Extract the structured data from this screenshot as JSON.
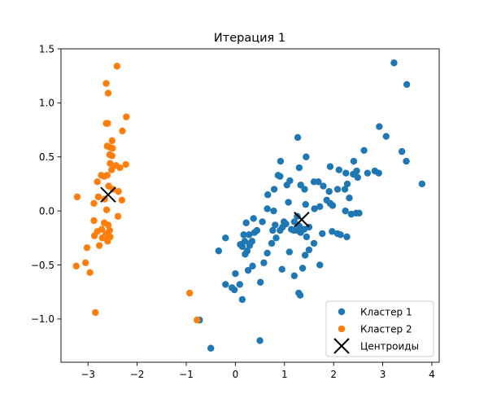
{
  "chart_data": {
    "type": "scatter",
    "title": "Итерация 1",
    "xlabel": "",
    "ylabel": "",
    "xlim": [
      -3.55,
      4.15
    ],
    "ylim": [
      -1.4,
      1.5
    ],
    "xticks": [
      -3,
      -2,
      -1,
      0,
      1,
      2,
      3,
      4
    ],
    "xtick_labels": [
      "−3",
      "−2",
      "−1",
      "0",
      "1",
      "2",
      "3",
      "4"
    ],
    "yticks": [
      -1.0,
      -0.5,
      0.0,
      0.5,
      1.0,
      1.5
    ],
    "ytick_labels": [
      "−1.0",
      "−0.5",
      "0.0",
      "0.5",
      "1.0",
      "1.5"
    ],
    "grid": false,
    "legend_position": "lower-right",
    "series": [
      {
        "name": "Кластер 1",
        "color": "#1f77b4",
        "marker": "circle",
        "points": [
          [
            3.23,
            1.37
          ],
          [
            3.49,
            1.17
          ],
          [
            2.93,
            0.78
          ],
          [
            3.07,
            0.69
          ],
          [
            2.62,
            0.56
          ],
          [
            3.39,
            0.55
          ],
          [
            3.48,
            0.46
          ],
          [
            3.8,
            0.25
          ],
          [
            2.41,
            0.46
          ],
          [
            2.47,
            0.37
          ],
          [
            2.84,
            0.37
          ],
          [
            2.92,
            0.35
          ],
          [
            2.69,
            0.35
          ],
          [
            2.4,
            0.34
          ],
          [
            2.25,
            0.35
          ],
          [
            2.49,
            0.31
          ],
          [
            1.93,
            0.41
          ],
          [
            2.11,
            0.38
          ],
          [
            1.69,
            0.27
          ],
          [
            1.79,
            0.23
          ],
          [
            1.6,
            0.27
          ],
          [
            1.27,
            0.68
          ],
          [
            1.44,
            0.5
          ],
          [
            1.3,
            0.4
          ],
          [
            0.92,
            0.46
          ],
          [
            0.87,
            0.33
          ],
          [
            0.91,
            0.32
          ],
          [
            1.11,
            0.28
          ],
          [
            1.05,
            0.24
          ],
          [
            0.79,
            0.2
          ],
          [
            0.66,
            0.15
          ],
          [
            1.33,
            0.24
          ],
          [
            2.28,
            0.25
          ],
          [
            2.23,
            0.2
          ],
          [
            2.08,
            0.2
          ],
          [
            2.32,
            0.12
          ],
          [
            1.91,
            0.18
          ],
          [
            1.86,
            0.1
          ],
          [
            1.98,
            0.05
          ],
          [
            1.72,
            0.04
          ],
          [
            1.61,
            0.02
          ],
          [
            1.93,
            0.07
          ],
          [
            1.41,
            0.2
          ],
          [
            1.43,
            0.06
          ],
          [
            1.08,
            0.08
          ],
          [
            0.65,
            0.02
          ],
          [
            0.78,
            0.0
          ],
          [
            0.55,
            -0.1
          ],
          [
            0.99,
            -0.1
          ],
          [
            0.81,
            -0.13
          ],
          [
            0.96,
            -0.15
          ],
          [
            1.03,
            -0.12
          ],
          [
            1.26,
            -0.05
          ],
          [
            1.2,
            -0.1
          ],
          [
            1.14,
            -0.17
          ],
          [
            0.91,
            -0.18
          ],
          [
            0.76,
            -0.18
          ],
          [
            0.39,
            -0.2
          ],
          [
            0.37,
            -0.07
          ],
          [
            0.22,
            -0.11
          ],
          [
            0.17,
            -0.22
          ],
          [
            0.29,
            -0.32
          ],
          [
            0.34,
            -0.28
          ],
          [
            0.44,
            -0.18
          ],
          [
            0.28,
            -0.22
          ],
          [
            0.19,
            -0.28
          ],
          [
            0.1,
            -0.31
          ],
          [
            0.24,
            -0.37
          ],
          [
            0.3,
            -0.3
          ],
          [
            0.2,
            -0.4
          ],
          [
            0.14,
            -0.33
          ],
          [
            -0.2,
            -0.25
          ],
          [
            -0.34,
            -0.37
          ],
          [
            0.0,
            -0.58
          ],
          [
            0.09,
            -0.68
          ],
          [
            -0.2,
            -0.68
          ],
          [
            -0.07,
            -0.71
          ],
          [
            0.14,
            -0.82
          ],
          [
            -0.02,
            -0.73
          ],
          [
            0.26,
            -0.55
          ],
          [
            0.35,
            -0.51
          ],
          [
            0.58,
            -0.48
          ],
          [
            0.65,
            -0.39
          ],
          [
            0.74,
            -0.3
          ],
          [
            0.83,
            -0.25
          ],
          [
            0.95,
            -0.54
          ],
          [
            1.2,
            -0.6
          ],
          [
            1.37,
            -0.53
          ],
          [
            1.42,
            -0.41
          ],
          [
            1.5,
            -0.36
          ],
          [
            1.72,
            -0.5
          ],
          [
            1.6,
            -0.3
          ],
          [
            1.45,
            -0.24
          ],
          [
            1.33,
            -0.2
          ],
          [
            1.3,
            -0.14
          ],
          [
            1.4,
            -0.17
          ],
          [
            1.5,
            -0.15
          ],
          [
            1.26,
            -0.18
          ],
          [
            1.19,
            -0.18
          ],
          [
            1.77,
            -0.21
          ],
          [
            1.97,
            -0.19
          ],
          [
            2.08,
            -0.21
          ],
          [
            2.14,
            -0.22
          ],
          [
            2.27,
            -0.24
          ],
          [
            2.36,
            -0.03
          ],
          [
            2.46,
            -0.02
          ],
          [
            2.24,
            0.0
          ],
          [
            2.52,
            -0.02
          ],
          [
            1.29,
            -0.76
          ],
          [
            1.32,
            -0.78
          ],
          [
            0.5,
            -1.2
          ],
          [
            -0.73,
            -1.01
          ],
          [
            -0.5,
            -1.27
          ],
          [
            0.51,
            -0.66
          ],
          [
            1.1,
            -0.38
          ]
        ]
      },
      {
        "name": "Кластер 2",
        "color": "#ff7f0e",
        "marker": "circle",
        "points": [
          [
            -2.41,
            1.34
          ],
          [
            -2.63,
            1.18
          ],
          [
            -2.59,
            1.09
          ],
          [
            -2.22,
            0.87
          ],
          [
            -2.63,
            0.81
          ],
          [
            -2.6,
            0.81
          ],
          [
            -2.3,
            0.74
          ],
          [
            -2.51,
            0.65
          ],
          [
            -2.61,
            0.6
          ],
          [
            -2.56,
            0.59
          ],
          [
            -2.5,
            0.58
          ],
          [
            -2.56,
            0.52
          ],
          [
            -2.51,
            0.51
          ],
          [
            -2.43,
            0.42
          ],
          [
            -2.23,
            0.43
          ],
          [
            -2.35,
            0.4
          ],
          [
            -2.55,
            0.44
          ],
          [
            -2.52,
            0.38
          ],
          [
            -2.61,
            0.33
          ],
          [
            -2.67,
            0.32
          ],
          [
            -2.73,
            0.33
          ],
          [
            -2.81,
            0.27
          ],
          [
            -2.58,
            0.23
          ],
          [
            -2.49,
            0.2
          ],
          [
            -2.38,
            0.18
          ],
          [
            -2.79,
            0.13
          ],
          [
            -2.66,
            0.11
          ],
          [
            -2.31,
            0.1
          ],
          [
            -2.88,
            0.07
          ],
          [
            -3.22,
            0.13
          ],
          [
            -2.62,
            0.01
          ],
          [
            -2.39,
            -0.05
          ],
          [
            -2.67,
            -0.11
          ],
          [
            -2.88,
            -0.09
          ],
          [
            -2.59,
            -0.13
          ],
          [
            -2.72,
            -0.17
          ],
          [
            -2.56,
            -0.18
          ],
          [
            -2.81,
            -0.19
          ],
          [
            -2.63,
            -0.21
          ],
          [
            -2.71,
            -0.25
          ],
          [
            -2.87,
            -0.23
          ],
          [
            -2.77,
            -0.32
          ],
          [
            -2.55,
            -0.24
          ],
          [
            -2.6,
            -0.28
          ],
          [
            -2.64,
            -0.22
          ],
          [
            -3.02,
            -0.34
          ],
          [
            -3.05,
            -0.48
          ],
          [
            -3.24,
            -0.51
          ],
          [
            -2.96,
            -0.57
          ],
          [
            -2.85,
            -0.94
          ],
          [
            -0.93,
            -0.76
          ],
          [
            -0.78,
            -1.01
          ]
        ]
      },
      {
        "name": "Центроиды",
        "color": "#000000",
        "marker": "x",
        "points": [
          [
            -2.59,
            0.15
          ],
          [
            1.35,
            -0.08
          ]
        ]
      }
    ]
  }
}
